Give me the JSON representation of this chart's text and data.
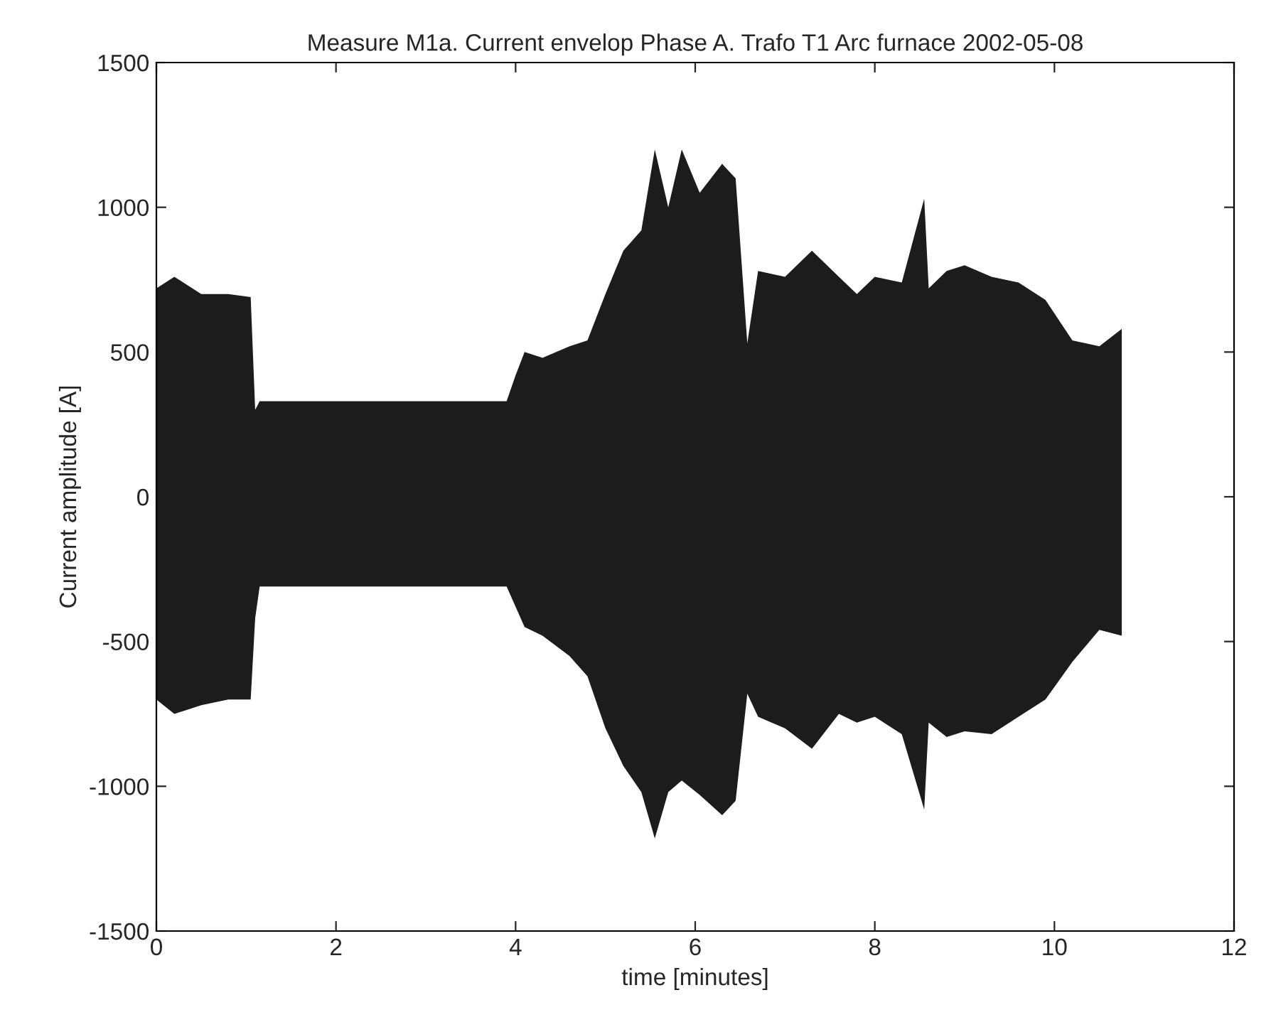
{
  "chart_data": {
    "type": "area",
    "title": "Measure M1a. Current envelop Phase A. Trafo T1 Arc furnace 2002-05-08",
    "xlabel": "time [minutes]",
    "ylabel": "Current amplitude [A]",
    "x": [
      0,
      0.2,
      0.5,
      0.8,
      1.05,
      1.1,
      1.15,
      2,
      3,
      3.9,
      4.0,
      4.1,
      4.3,
      4.6,
      4.8,
      5.0,
      5.2,
      5.4,
      5.55,
      5.7,
      5.85,
      6.05,
      6.3,
      6.45,
      6.58,
      6.7,
      7.0,
      7.3,
      7.6,
      7.8,
      8.0,
      8.3,
      8.55,
      8.6,
      8.8,
      9.0,
      9.3,
      9.6,
      9.9,
      10.2,
      10.5,
      10.75
    ],
    "series": [
      {
        "color": "#1c1c1c",
        "values": [
          720,
          760,
          700,
          700,
          690,
          300,
          330,
          330,
          330,
          330,
          420,
          500,
          480,
          520,
          540,
          700,
          850,
          920,
          1200,
          1000,
          1200,
          1050,
          1150,
          1100,
          530,
          780,
          760,
          850,
          760,
          700,
          760,
          740,
          1030,
          720,
          780,
          800,
          760,
          740,
          680,
          540,
          520,
          580
        ]
      },
      {
        "color": "#1c1c1c",
        "values": [
          -700,
          -750,
          -720,
          -700,
          -700,
          -420,
          -310,
          -310,
          -310,
          -310,
          -380,
          -450,
          -480,
          -550,
          -620,
          -800,
          -930,
          -1020,
          -1180,
          -1020,
          -980,
          -1030,
          -1100,
          -1050,
          -680,
          -760,
          -800,
          -870,
          -750,
          -780,
          -760,
          -820,
          -1080,
          -780,
          -830,
          -810,
          -820,
          -760,
          -700,
          -570,
          -460,
          -480
        ]
      }
    ],
    "xlim": [
      0,
      12
    ],
    "xticks": [
      0,
      2,
      4,
      6,
      8,
      10,
      12
    ],
    "ylim": [
      -1500,
      1500
    ],
    "yticks": [
      -1500,
      -1000,
      -500,
      0,
      500,
      1000,
      1500
    ],
    "grid": false,
    "legend": false
  }
}
